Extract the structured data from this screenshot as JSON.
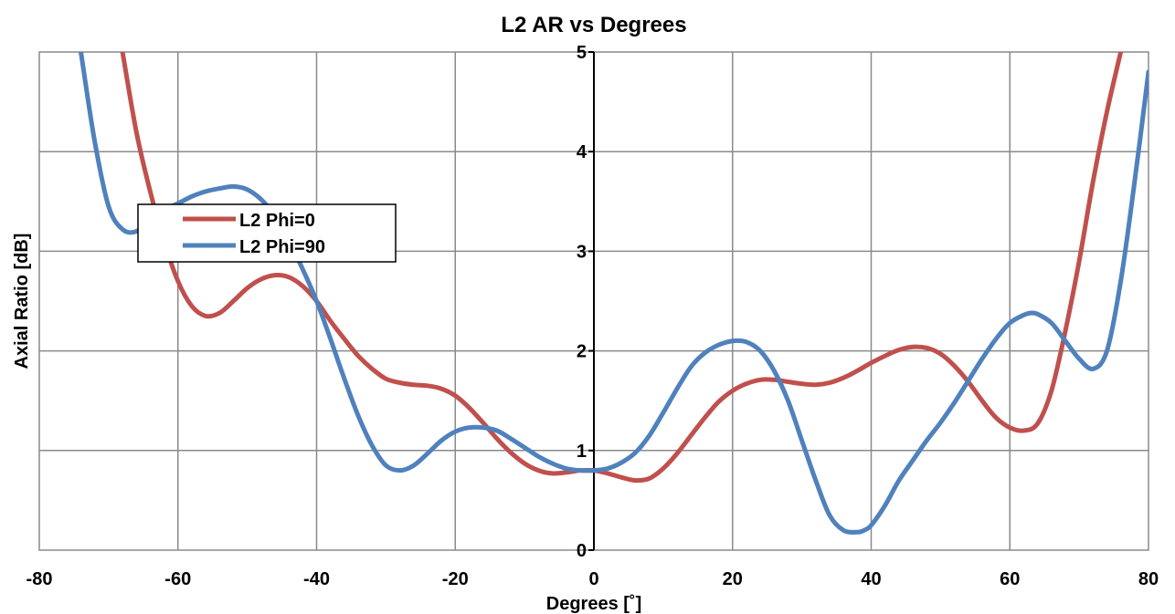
{
  "chart_data": {
    "type": "line",
    "title": "L2 AR vs Degrees",
    "xlabel": "Degrees [˚]",
    "ylabel": "Axial Ratio [dB]",
    "xlim": [
      -80,
      80
    ],
    "ylim": [
      0,
      5
    ],
    "x_ticks": [
      -80,
      -60,
      -40,
      -20,
      0,
      20,
      40,
      60,
      80
    ],
    "x_tick_labels": [
      "-80",
      "-60",
      "-40",
      "-20",
      "0",
      "20",
      "40",
      "60",
      "80"
    ],
    "y_ticks": [
      0,
      1,
      2,
      3,
      4,
      5
    ],
    "y_tick_labels": [
      "0",
      "1",
      "",
      "3",
      "4",
      "5"
    ],
    "y_tick_label_extra": "2",
    "grid": true,
    "legend_position": "upper-left",
    "series": [
      {
        "name": "L2 Phi=0",
        "color": "#c0504d",
        "x": [
          -68,
          -66,
          -64,
          -62,
          -60,
          -58,
          -56,
          -54,
          -52,
          -50,
          -48,
          -46,
          -44,
          -42,
          -40,
          -38,
          -36,
          -34,
          -32,
          -30,
          -28,
          -26,
          -24,
          -22,
          -20,
          -18,
          -16,
          -14,
          -12,
          -10,
          -8,
          -6,
          -4,
          -2,
          0,
          2,
          4,
          6,
          8,
          10,
          12,
          14,
          16,
          18,
          20,
          22,
          24,
          26,
          28,
          30,
          32,
          34,
          36,
          38,
          40,
          42,
          44,
          46,
          48,
          50,
          52,
          54,
          56,
          58,
          60,
          62,
          64,
          66,
          68,
          70,
          72,
          74,
          76,
          77
        ],
        "y": [
          5.0,
          4.2,
          3.6,
          3.1,
          2.7,
          2.45,
          2.35,
          2.38,
          2.5,
          2.63,
          2.72,
          2.76,
          2.74,
          2.65,
          2.5,
          2.3,
          2.12,
          1.95,
          1.82,
          1.72,
          1.68,
          1.66,
          1.65,
          1.62,
          1.55,
          1.43,
          1.28,
          1.12,
          0.98,
          0.87,
          0.8,
          0.77,
          0.78,
          0.8,
          0.8,
          0.77,
          0.73,
          0.7,
          0.72,
          0.82,
          0.97,
          1.15,
          1.33,
          1.49,
          1.6,
          1.67,
          1.71,
          1.71,
          1.69,
          1.67,
          1.66,
          1.68,
          1.73,
          1.8,
          1.88,
          1.95,
          2.01,
          2.04,
          2.03,
          1.97,
          1.85,
          1.69,
          1.5,
          1.33,
          1.23,
          1.2,
          1.27,
          1.6,
          2.2,
          2.9,
          3.7,
          4.4,
          5.0,
          5.3
        ]
      },
      {
        "name": "L2 Phi=90",
        "color": "#4f81bd",
        "x": [
          -74,
          -72,
          -70,
          -68,
          -66,
          -64,
          -62,
          -60,
          -58,
          -56,
          -54,
          -52,
          -50,
          -48,
          -46,
          -44,
          -42,
          -40,
          -38,
          -36,
          -34,
          -32,
          -30,
          -28,
          -26,
          -24,
          -22,
          -20,
          -18,
          -16,
          -14,
          -12,
          -10,
          -8,
          -6,
          -4,
          -2,
          0,
          2,
          4,
          6,
          8,
          10,
          12,
          14,
          16,
          18,
          20,
          22,
          24,
          26,
          28,
          30,
          32,
          34,
          36,
          38,
          39,
          40,
          42,
          44,
          46,
          48,
          50,
          52,
          54,
          56,
          58,
          60,
          62,
          63,
          64,
          66,
          68,
          70,
          72,
          74,
          76,
          78,
          80
        ],
        "y": [
          5.0,
          4.1,
          3.45,
          3.22,
          3.2,
          3.32,
          3.42,
          3.48,
          3.55,
          3.6,
          3.63,
          3.65,
          3.62,
          3.52,
          3.35,
          3.1,
          2.82,
          2.5,
          2.12,
          1.72,
          1.35,
          1.05,
          0.85,
          0.8,
          0.85,
          0.97,
          1.1,
          1.19,
          1.23,
          1.23,
          1.2,
          1.12,
          1.03,
          0.94,
          0.87,
          0.82,
          0.8,
          0.8,
          0.82,
          0.88,
          0.98,
          1.15,
          1.38,
          1.62,
          1.84,
          1.98,
          2.06,
          2.1,
          2.09,
          2.0,
          1.8,
          1.5,
          1.1,
          0.7,
          0.35,
          0.2,
          0.18,
          0.2,
          0.25,
          0.45,
          0.7,
          0.9,
          1.1,
          1.28,
          1.48,
          1.7,
          1.92,
          2.12,
          2.28,
          2.36,
          2.38,
          2.37,
          2.28,
          2.1,
          1.92,
          1.82,
          2.0,
          2.7,
          3.7,
          4.8
        ]
      }
    ]
  }
}
